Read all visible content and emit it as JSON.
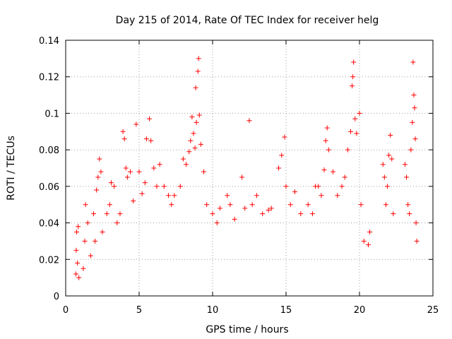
{
  "chart_data": {
    "type": "scatter",
    "title": "Day 215 of 2014, Rate Of TEC Index for receiver helg",
    "xlabel": "GPS time / hours",
    "ylabel": "ROTI / TECUs",
    "xlim": [
      0,
      25
    ],
    "ylim": [
      0,
      0.14
    ],
    "x_ticks": [
      0,
      5,
      10,
      15,
      20,
      25
    ],
    "x_tick_labels": [
      "0",
      "5",
      "10",
      "15",
      "20",
      "25"
    ],
    "y_ticks": [
      0,
      0.02,
      0.04,
      0.06,
      0.08,
      0.1,
      0.12,
      0.14
    ],
    "y_tick_labels": [
      "0",
      "0.02",
      "0.04",
      "0.06",
      "0.08",
      "0.1",
      "0.12",
      "0.14"
    ],
    "grid": true,
    "marker": "plus",
    "color": "#ff0000",
    "series": [
      {
        "values": [
          [
            0.7,
            0.012
          ],
          [
            0.72,
            0.025
          ],
          [
            0.75,
            0.035
          ],
          [
            0.8,
            0.018
          ],
          [
            0.85,
            0.038
          ],
          [
            0.9,
            0.01
          ],
          [
            1.2,
            0.015
          ],
          [
            1.3,
            0.03
          ],
          [
            1.35,
            0.05
          ],
          [
            1.5,
            0.04
          ],
          [
            1.7,
            0.022
          ],
          [
            1.9,
            0.045
          ],
          [
            2.0,
            0.03
          ],
          [
            2.1,
            0.058
          ],
          [
            2.2,
            0.065
          ],
          [
            2.3,
            0.075
          ],
          [
            2.4,
            0.068
          ],
          [
            2.5,
            0.035
          ],
          [
            2.8,
            0.045
          ],
          [
            3.0,
            0.05
          ],
          [
            3.1,
            0.062
          ],
          [
            3.3,
            0.06
          ],
          [
            3.5,
            0.04
          ],
          [
            3.7,
            0.045
          ],
          [
            3.9,
            0.09
          ],
          [
            4.0,
            0.086
          ],
          [
            4.1,
            0.07
          ],
          [
            4.2,
            0.065
          ],
          [
            4.4,
            0.068
          ],
          [
            4.6,
            0.052
          ],
          [
            4.8,
            0.094
          ],
          [
            5.0,
            0.068
          ],
          [
            5.2,
            0.056
          ],
          [
            5.4,
            0.062
          ],
          [
            5.5,
            0.086
          ],
          [
            5.7,
            0.097
          ],
          [
            5.8,
            0.085
          ],
          [
            6.0,
            0.07
          ],
          [
            6.2,
            0.06
          ],
          [
            6.4,
            0.072
          ],
          [
            6.7,
            0.06
          ],
          [
            7.0,
            0.055
          ],
          [
            7.2,
            0.05
          ],
          [
            7.4,
            0.055
          ],
          [
            7.8,
            0.06
          ],
          [
            8.0,
            0.075
          ],
          [
            8.2,
            0.072
          ],
          [
            8.4,
            0.079
          ],
          [
            8.5,
            0.085
          ],
          [
            8.6,
            0.098
          ],
          [
            8.7,
            0.089
          ],
          [
            8.8,
            0.081
          ],
          [
            8.85,
            0.114
          ],
          [
            8.9,
            0.095
          ],
          [
            9.0,
            0.123
          ],
          [
            9.05,
            0.13
          ],
          [
            9.1,
            0.099
          ],
          [
            9.2,
            0.083
          ],
          [
            9.4,
            0.068
          ],
          [
            9.6,
            0.05
          ],
          [
            10.0,
            0.045
          ],
          [
            10.3,
            0.04
          ],
          [
            10.5,
            0.048
          ],
          [
            11.0,
            0.055
          ],
          [
            11.2,
            0.05
          ],
          [
            11.5,
            0.042
          ],
          [
            12.0,
            0.065
          ],
          [
            12.2,
            0.048
          ],
          [
            12.5,
            0.096
          ],
          [
            12.7,
            0.05
          ],
          [
            13.0,
            0.055
          ],
          [
            13.4,
            0.045
          ],
          [
            13.8,
            0.047
          ],
          [
            14.0,
            0.048
          ],
          [
            14.5,
            0.07
          ],
          [
            14.7,
            0.077
          ],
          [
            14.9,
            0.087
          ],
          [
            15.0,
            0.06
          ],
          [
            15.3,
            0.05
          ],
          [
            15.6,
            0.057
          ],
          [
            16.0,
            0.045
          ],
          [
            16.5,
            0.05
          ],
          [
            16.8,
            0.045
          ],
          [
            17.0,
            0.06
          ],
          [
            17.2,
            0.06
          ],
          [
            17.4,
            0.055
          ],
          [
            17.6,
            0.069
          ],
          [
            17.7,
            0.085
          ],
          [
            17.8,
            0.092
          ],
          [
            17.9,
            0.08
          ],
          [
            18.2,
            0.068
          ],
          [
            18.5,
            0.055
          ],
          [
            18.8,
            0.06
          ],
          [
            19.0,
            0.065
          ],
          [
            19.2,
            0.08
          ],
          [
            19.4,
            0.09
          ],
          [
            19.5,
            0.115
          ],
          [
            19.55,
            0.12
          ],
          [
            19.6,
            0.128
          ],
          [
            19.7,
            0.097
          ],
          [
            19.8,
            0.089
          ],
          [
            20.0,
            0.1
          ],
          [
            20.1,
            0.05
          ],
          [
            20.3,
            0.03
          ],
          [
            20.6,
            0.028
          ],
          [
            20.7,
            0.035
          ],
          [
            21.6,
            0.072
          ],
          [
            21.7,
            0.065
          ],
          [
            21.8,
            0.05
          ],
          [
            21.9,
            0.06
          ],
          [
            22.0,
            0.077
          ],
          [
            22.1,
            0.088
          ],
          [
            22.2,
            0.075
          ],
          [
            22.3,
            0.045
          ],
          [
            23.1,
            0.072
          ],
          [
            23.2,
            0.065
          ],
          [
            23.3,
            0.05
          ],
          [
            23.4,
            0.045
          ],
          [
            23.5,
            0.08
          ],
          [
            23.6,
            0.095
          ],
          [
            23.65,
            0.128
          ],
          [
            23.7,
            0.11
          ],
          [
            23.75,
            0.103
          ],
          [
            23.8,
            0.086
          ],
          [
            23.85,
            0.04
          ],
          [
            23.9,
            0.03
          ]
        ]
      }
    ]
  }
}
